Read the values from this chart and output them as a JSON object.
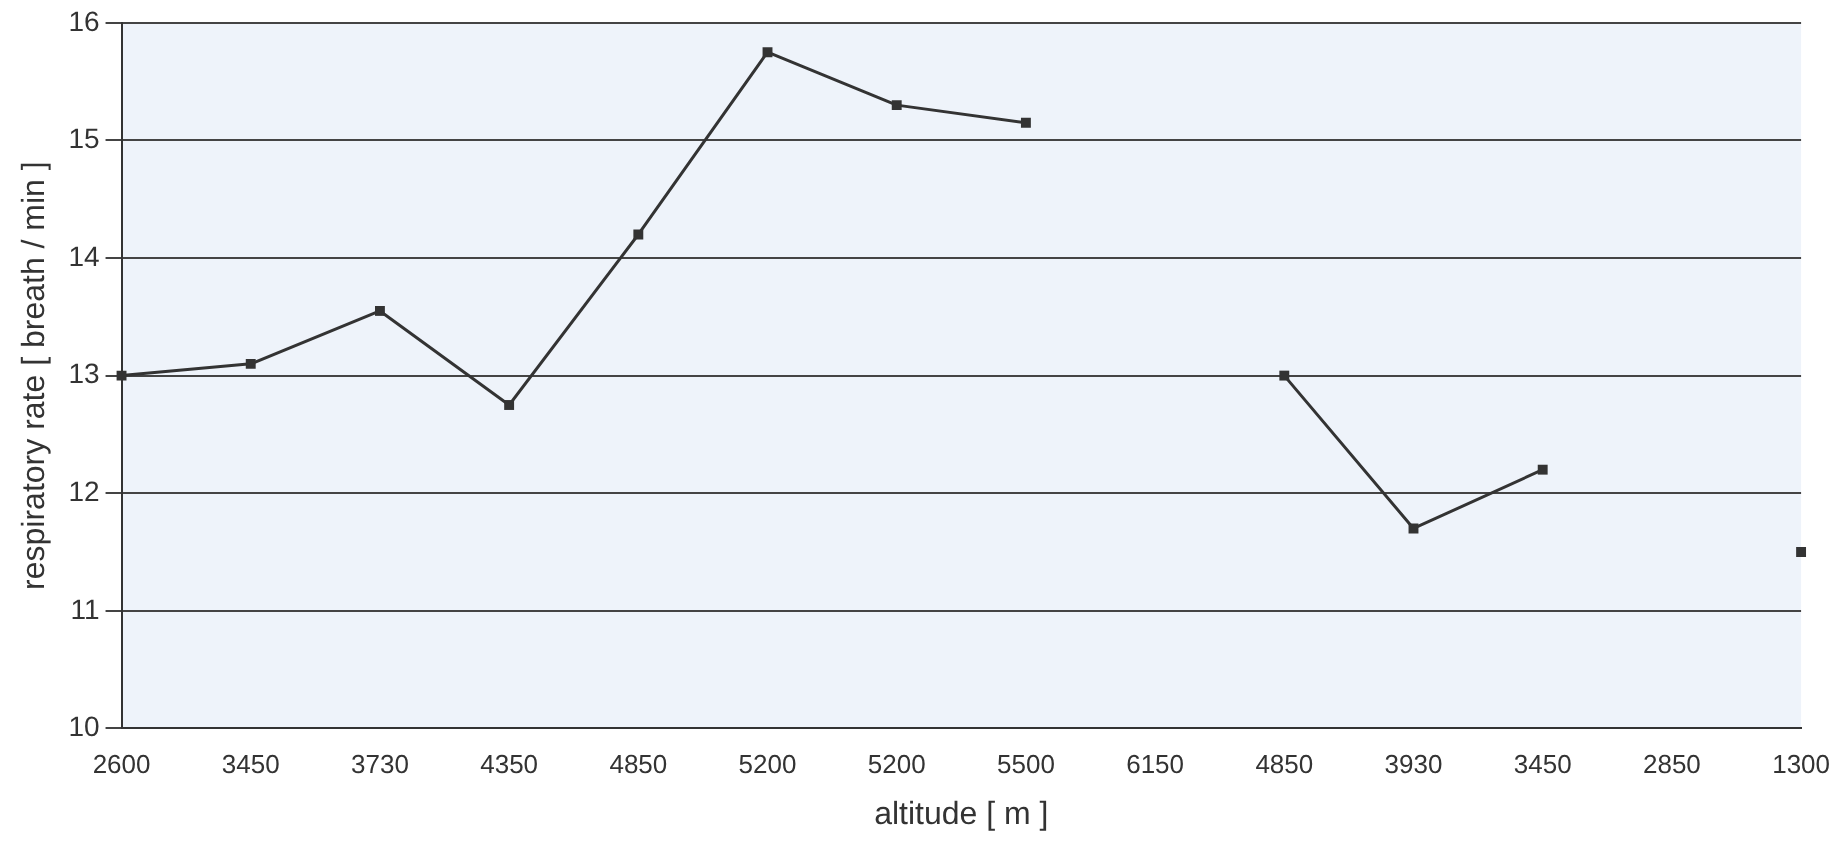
{
  "chart_data": {
    "type": "line",
    "xlabel": "altitude [ m ]",
    "ylabel": "respiratory rate [ breath / min ]",
    "categories": [
      "2600",
      "3450",
      "3730",
      "4350",
      "4850",
      "5200",
      "5200",
      "5500",
      "6150",
      "4850",
      "3930",
      "3450",
      "2850",
      "1300"
    ],
    "series": [
      {
        "color": "#333333",
        "values": [
          13.0,
          13.1,
          13.55,
          12.75,
          14.2,
          15.75,
          15.3,
          15.15,
          null,
          13.0,
          11.7,
          12.2,
          null,
          11.5
        ]
      }
    ],
    "ylim": [
      10,
      16
    ],
    "yticks": [
      10,
      11,
      12,
      13,
      14,
      15,
      16
    ],
    "grid": "y",
    "legend": false,
    "marker": "square",
    "line_style": "solid"
  }
}
